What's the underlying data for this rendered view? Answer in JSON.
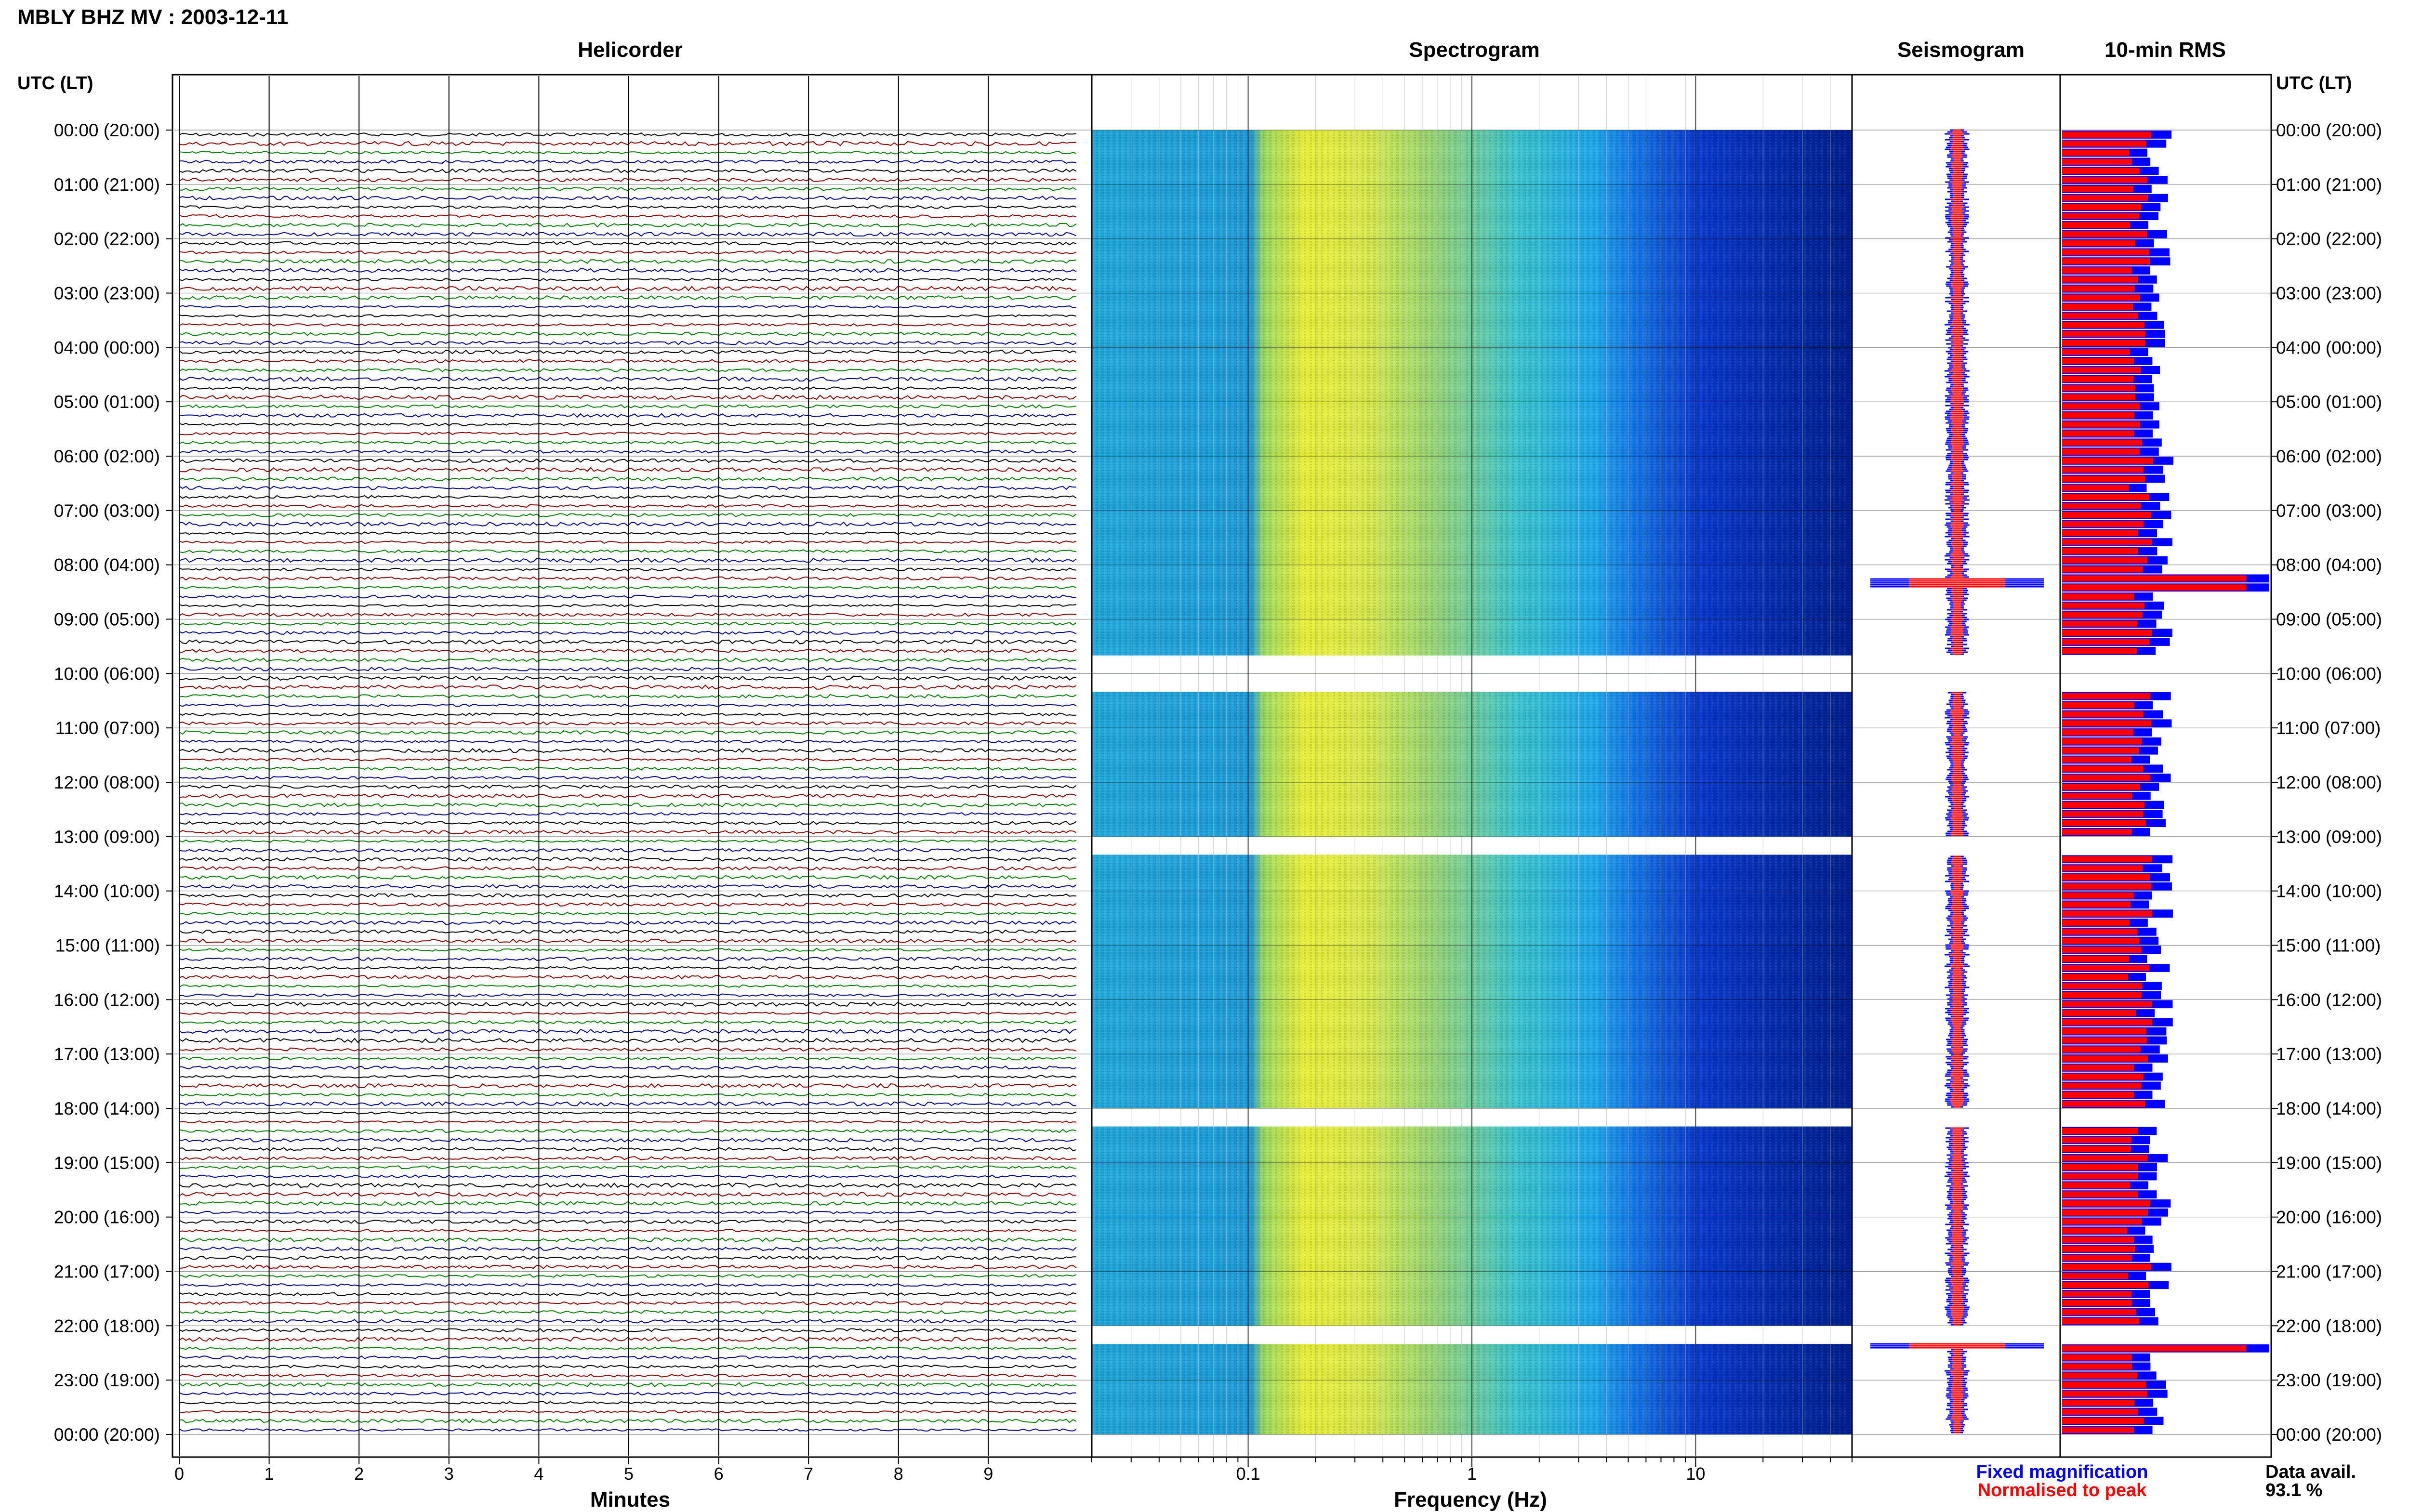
{
  "title": "MBLY BHZ MV : 2003-12-11",
  "panels": {
    "helicorder": "Helicorder",
    "spectrogram": "Spectrogram",
    "seismogram": "Seismogram",
    "rms": "10-min RMS"
  },
  "axis": {
    "time_header": "UTC (LT)",
    "minutes_label": "Minutes",
    "frequency_label": "Frequency (Hz)",
    "minute_ticks": [
      "0",
      "1",
      "2",
      "3",
      "4",
      "5",
      "6",
      "7",
      "8",
      "9"
    ],
    "freq_ticks": [
      "0.1",
      "1",
      "10"
    ]
  },
  "hour_labels": [
    "00:00 (20:00)",
    "01:00 (21:00)",
    "02:00 (22:00)",
    "03:00 (23:00)",
    "04:00 (00:00)",
    "05:00 (01:00)",
    "06:00 (02:00)",
    "07:00 (03:00)",
    "08:00 (04:00)",
    "09:00 (05:00)",
    "10:00 (06:00)",
    "11:00 (07:00)",
    "12:00 (08:00)",
    "13:00 (09:00)",
    "14:00 (10:00)",
    "15:00 (11:00)",
    "16:00 (12:00)",
    "17:00 (13:00)",
    "18:00 (14:00)",
    "19:00 (15:00)",
    "20:00 (16:00)",
    "21:00 (17:00)",
    "22:00 (18:00)",
    "23:00 (19:00)",
    "00:00 (20:00)"
  ],
  "legend": {
    "fixed": "Fixed magnification",
    "normalised": "Normalised to peak",
    "fixed_color": "#0000ff",
    "normalised_color": "#ff0000"
  },
  "availability": {
    "label": "Data avail.",
    "value": "93.1 %"
  },
  "chart_data": {
    "type": "heatmap",
    "station": "MBLY BHZ MV",
    "date": "2003-12-11",
    "trace_colors": [
      "#000000",
      "#8b0000",
      "#008000",
      "#00008b"
    ],
    "helicorder_minutes_per_line": 10,
    "minute_range": [
      0,
      10
    ],
    "frequency_range_hz": [
      0.02,
      50
    ],
    "frequency_scale": "log",
    "data_gaps_utc": [
      [
        "09:40",
        "09:60"
      ],
      [
        "10:00",
        "10:20"
      ],
      [
        "13:00",
        "13:20"
      ],
      [
        "18:00",
        "18:20"
      ],
      [
        "22:00",
        "22:20"
      ]
    ],
    "rms_10min": {
      "fixed_series_name": "Fixed magnification",
      "normalised_series_name": "Normalised to peak",
      "peak_events_utc": [
        "08:20",
        "22:20"
      ]
    },
    "data_availability_percent": 93.1
  }
}
